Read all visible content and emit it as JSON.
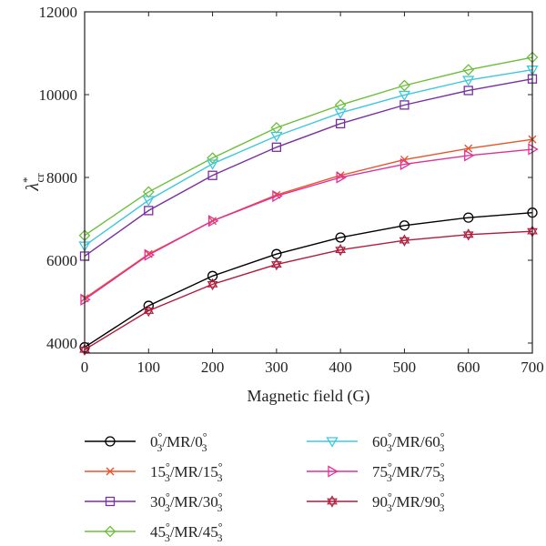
{
  "chart_data": {
    "type": "line",
    "xlabel": "Magnetic field (G)",
    "ylabel": "λ*cr",
    "ylabel_main": "λ",
    "ylabel_sup": "*",
    "ylabel_sub": "cr",
    "x": [
      0,
      100,
      200,
      300,
      400,
      500,
      600,
      700
    ],
    "xlim": [
      0,
      700
    ],
    "ylim": [
      3900,
      12000
    ],
    "xticks": [
      "0",
      "100",
      "200",
      "300",
      "400",
      "500",
      "600",
      "700"
    ],
    "yticks": [
      "4000",
      "6000",
      "8000",
      "10000",
      "12000"
    ],
    "ytick_values": [
      4000,
      6000,
      8000,
      10000,
      12000
    ],
    "grid": false,
    "legend_position": "bottom",
    "series": [
      {
        "name": "0°3/MR/0°3",
        "deg": "0",
        "color": "#000000",
        "marker": "circle",
        "values": [
          3900,
          4900,
          5620,
          6150,
          6550,
          6840,
          7030,
          7150
        ]
      },
      {
        "name": "15°3/MR/15°3",
        "deg": "15",
        "color": "#e8542a",
        "marker": "x",
        "values": [
          5080,
          6150,
          6950,
          7580,
          8050,
          8430,
          8700,
          8920
        ]
      },
      {
        "name": "30°3/MR/30°3",
        "deg": "30",
        "color": "#7b2fa0",
        "marker": "square",
        "values": [
          6100,
          7200,
          8050,
          8730,
          9300,
          9750,
          10100,
          10380
        ]
      },
      {
        "name": "45°3/MR/45°3",
        "deg": "45",
        "color": "#6cbf3a",
        "marker": "diamond",
        "values": [
          6600,
          7650,
          8470,
          9200,
          9750,
          10220,
          10600,
          10900
        ]
      },
      {
        "name": "60°3/MR/60°3",
        "deg": "60",
        "color": "#3ec8dd",
        "marker": "triangle-down",
        "values": [
          6350,
          7450,
          8330,
          9000,
          9560,
          9990,
          10350,
          10600
        ]
      },
      {
        "name": "75°3/MR/75°3",
        "deg": "75",
        "color": "#e0309a",
        "marker": "triangle-right",
        "values": [
          5050,
          6130,
          6950,
          7550,
          8000,
          8320,
          8530,
          8680
        ]
      },
      {
        "name": "90°3/MR/90°3",
        "deg": "90",
        "color": "#b01c3c",
        "marker": "star",
        "values": [
          3840,
          4780,
          5420,
          5900,
          6250,
          6480,
          6620,
          6700
        ]
      }
    ]
  }
}
